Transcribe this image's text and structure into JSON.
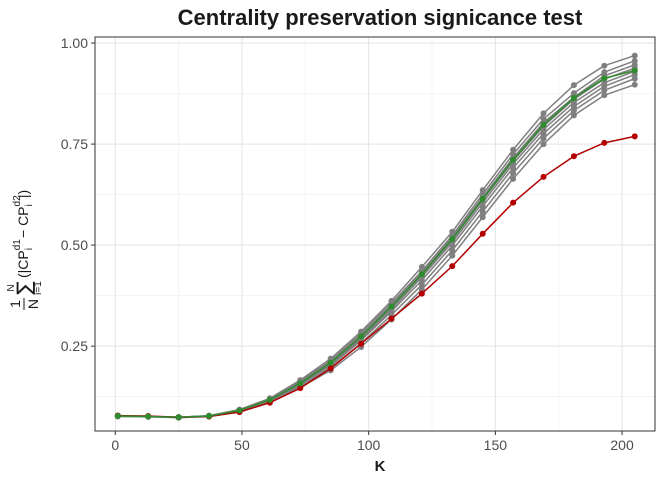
{
  "chart_data": {
    "type": "line",
    "title": "Centrality preservation signicance test",
    "xlabel": "K",
    "ylabel": {
      "frac_num": "1",
      "frac_den": "N",
      "sum_upper": "N",
      "sum_lower": "i=1",
      "body_left": "(|CP",
      "body_sup1": "d1",
      "body_sub1": "i",
      "body_mid": " − CP",
      "body_sup2": "d2",
      "body_sub2": "i",
      "body_right": "|)"
    },
    "xlim": [
      -8,
      213
    ],
    "ylim": [
      0.04,
      1.015
    ],
    "x_ticks": [
      0,
      50,
      100,
      150,
      200
    ],
    "x_tick_labels": [
      "0",
      "50",
      "100",
      "150",
      "200"
    ],
    "y_ticks": [
      0.25,
      0.5,
      0.75,
      1.0
    ],
    "y_tick_labels": [
      "0.25",
      "0.50",
      "0.75",
      "1.00"
    ],
    "grid": true,
    "x": [
      1,
      13,
      25,
      37,
      49,
      61,
      73,
      85,
      97,
      109,
      121,
      133,
      145,
      157,
      169,
      181,
      193,
      205
    ],
    "series": [
      {
        "color": "#7f7f7f",
        "values": [
          0.078,
          0.076,
          0.074,
          0.078,
          0.093,
          0.121,
          0.166,
          0.219,
          0.286,
          0.362,
          0.446,
          0.533,
          0.636,
          0.736,
          0.826,
          0.896,
          0.944,
          0.969
        ]
      },
      {
        "color": "#7f7f7f",
        "values": [
          0.077,
          0.076,
          0.074,
          0.077,
          0.092,
          0.119,
          0.163,
          0.214,
          0.281,
          0.356,
          0.436,
          0.524,
          0.626,
          0.725,
          0.812,
          0.876,
          0.928,
          0.956
        ]
      },
      {
        "color": "#7f7f7f",
        "values": [
          0.077,
          0.076,
          0.074,
          0.077,
          0.091,
          0.118,
          0.16,
          0.211,
          0.276,
          0.351,
          0.431,
          0.519,
          0.619,
          0.716,
          0.803,
          0.866,
          0.919,
          0.946
        ]
      },
      {
        "color": "#7f7f7f",
        "values": [
          0.077,
          0.076,
          0.074,
          0.077,
          0.09,
          0.117,
          0.158,
          0.207,
          0.272,
          0.346,
          0.426,
          0.513,
          0.612,
          0.708,
          0.794,
          0.861,
          0.911,
          0.938
        ]
      },
      {
        "color": "#7f7f7f",
        "values": [
          0.077,
          0.076,
          0.074,
          0.077,
          0.09,
          0.116,
          0.156,
          0.204,
          0.268,
          0.341,
          0.421,
          0.507,
          0.605,
          0.701,
          0.786,
          0.853,
          0.902,
          0.93
        ]
      },
      {
        "color": "#7f7f7f",
        "values": [
          0.077,
          0.076,
          0.074,
          0.077,
          0.089,
          0.115,
          0.154,
          0.201,
          0.264,
          0.336,
          0.413,
          0.499,
          0.596,
          0.691,
          0.776,
          0.843,
          0.893,
          0.922
        ]
      },
      {
        "color": "#7f7f7f",
        "values": [
          0.077,
          0.076,
          0.073,
          0.076,
          0.088,
          0.113,
          0.151,
          0.196,
          0.257,
          0.327,
          0.402,
          0.487,
          0.583,
          0.678,
          0.764,
          0.833,
          0.883,
          0.912
        ]
      },
      {
        "color": "#7f7f7f",
        "values": [
          0.076,
          0.075,
          0.073,
          0.076,
          0.087,
          0.111,
          0.148,
          0.19,
          0.248,
          0.316,
          0.39,
          0.474,
          0.569,
          0.664,
          0.75,
          0.821,
          0.871,
          0.897
        ]
      },
      {
        "color": "#b30000",
        "values": [
          0.078,
          0.077,
          0.074,
          0.076,
          0.087,
          0.11,
          0.146,
          0.195,
          0.256,
          0.318,
          0.38,
          0.448,
          0.528,
          0.605,
          0.669,
          0.72,
          0.753,
          0.769
        ]
      },
      {
        "color": "#2e8b2e",
        "values": [
          0.077,
          0.076,
          0.074,
          0.077,
          0.091,
          0.117,
          0.158,
          0.209,
          0.274,
          0.348,
          0.428,
          0.515,
          0.614,
          0.711,
          0.798,
          0.864,
          0.913,
          0.932
        ]
      }
    ]
  }
}
